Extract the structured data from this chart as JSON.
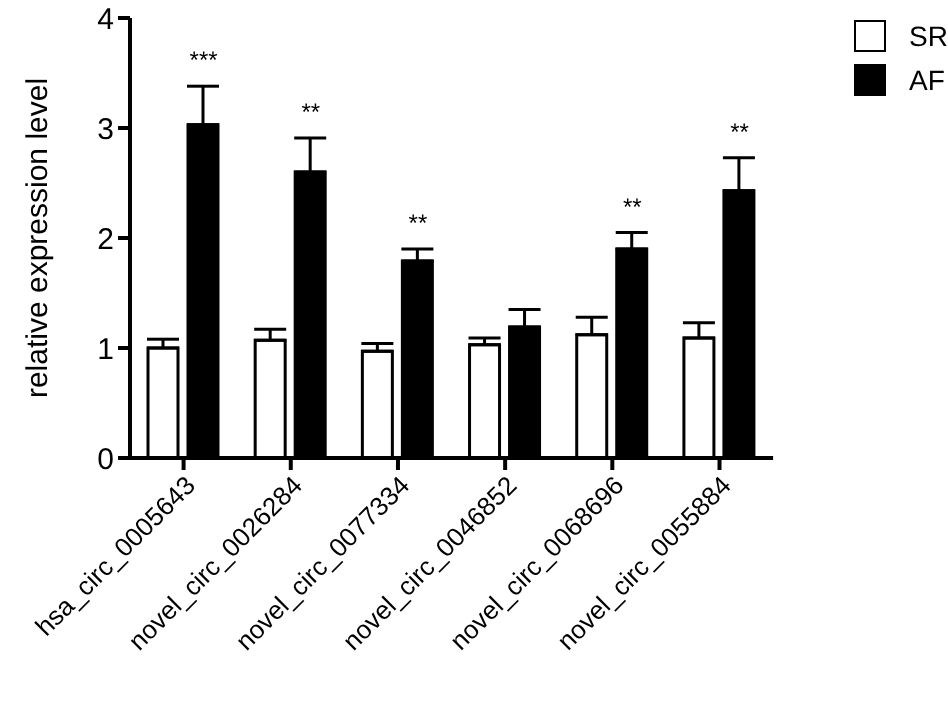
{
  "chart_data": {
    "type": "bar",
    "ylabel": "relative expression level",
    "categories": [
      "hsa_circ_0005643",
      "novel_circ_0026284",
      "novel_circ_0077334",
      "novel_circ_0046852",
      "novel_circ_0068696",
      "novel_circ_0055884"
    ],
    "series": [
      {
        "name": "SR",
        "color": "#ffffff",
        "values": [
          1.0,
          1.07,
          0.97,
          1.03,
          1.12,
          1.09
        ],
        "errors": [
          [
            1.0,
            1.08
          ],
          [
            1.07,
            1.17
          ],
          [
            0.97,
            1.04
          ],
          [
            1.03,
            1.09
          ],
          [
            1.12,
            1.28
          ],
          [
            1.09,
            1.23
          ]
        ]
      },
      {
        "name": "AF",
        "color": "#000000",
        "values": [
          3.03,
          2.6,
          1.79,
          1.19,
          1.9,
          2.43
        ],
        "errors": [
          [
            3.03,
            3.38
          ],
          [
            2.6,
            2.91
          ],
          [
            1.79,
            1.9
          ],
          [
            1.19,
            1.35
          ],
          [
            1.9,
            2.05
          ],
          [
            2.43,
            2.73
          ]
        ]
      }
    ],
    "annotations": [
      {
        "text": "***",
        "x": "hsa_circ_0005643",
        "y": 3.03
      },
      {
        "text": "**",
        "x": "novel_circ_0026284",
        "y": 2.6
      },
      {
        "text": "**",
        "x": "novel_circ_0077334",
        "y": 1.79
      },
      {
        "text": "**",
        "x": "novel_circ_0068696",
        "y": 1.9
      },
      {
        "text": "**",
        "x": "novel_circ_0055884",
        "y": 2.43
      }
    ],
    "ylim": [
      0,
      4
    ],
    "yticks": [
      0,
      1,
      2,
      3,
      4
    ],
    "grid": false,
    "legend": "top right"
  }
}
